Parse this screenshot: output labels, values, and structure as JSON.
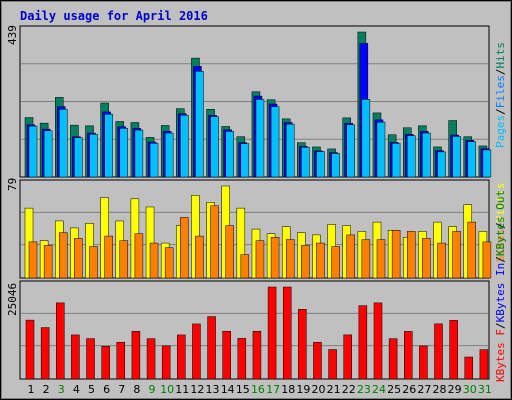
{
  "chart_data": [
    {
      "type": "bar",
      "title": "Daily usage for April 2016",
      "ylabel_max": "439",
      "legend": [
        "Pages",
        "/",
        "Files",
        "/",
        "Hits"
      ],
      "legend_colors": [
        "#00bfff",
        "#000000",
        "#0080ff",
        "#000000",
        "#00805c"
      ],
      "categories": [
        "1",
        "2",
        "3",
        "4",
        "5",
        "6",
        "7",
        "8",
        "9",
        "10",
        "11",
        "12",
        "13",
        "14",
        "15",
        "16",
        "17",
        "18",
        "19",
        "20",
        "21",
        "22",
        "23",
        "24",
        "25",
        "26",
        "27",
        "28",
        "29",
        "30",
        "31"
      ],
      "weekend_days": [
        "3",
        "9",
        "10",
        "16",
        "17",
        "23",
        "24",
        "30",
        "31"
      ],
      "series": [
        {
          "name": "Hits",
          "values": [
            180,
            163,
            241,
            157,
            155,
            224,
            168,
            165,
            120,
            156,
            207,
            360,
            205,
            153,
            122,
            258,
            234,
            176,
            104,
            91,
            85,
            179,
            439,
            194,
            128,
            149,
            155,
            91,
            171,
            122,
            94
          ]
        },
        {
          "name": "Files",
          "values": [
            158,
            145,
            213,
            122,
            133,
            197,
            152,
            147,
            106,
            138,
            192,
            335,
            187,
            143,
            104,
            245,
            221,
            165,
            93,
            79,
            74,
            163,
            405,
            173,
            105,
            129,
            138,
            80,
            127,
            111,
            86
          ]
        },
        {
          "name": "Pages",
          "values": [
            154,
            140,
            205,
            119,
            129,
            190,
            147,
            142,
            102,
            133,
            187,
            320,
            183,
            138,
            101,
            235,
            213,
            160,
            90,
            77,
            71,
            158,
            235,
            166,
            102,
            125,
            133,
            76,
            123,
            107,
            82
          ]
        }
      ]
    },
    {
      "type": "bar",
      "ylabel_max": "79",
      "legend": [
        "Sites",
        "/",
        "Visits"
      ],
      "legend_colors": [
        "#ff8000",
        "#000000",
        "#ffff00"
      ],
      "categories": [
        "1",
        "2",
        "3",
        "4",
        "5",
        "6",
        "7",
        "8",
        "9",
        "10",
        "11",
        "12",
        "13",
        "14",
        "15",
        "16",
        "17",
        "18",
        "19",
        "20",
        "21",
        "22",
        "23",
        "24",
        "25",
        "26",
        "27",
        "28",
        "29",
        "30",
        "31"
      ],
      "series": [
        {
          "name": "Visits",
          "values": [
            60,
            32,
            49,
            43,
            47,
            69,
            49,
            68,
            61,
            30,
            45,
            71,
            65,
            79,
            60,
            42,
            38,
            44,
            39,
            37,
            46,
            45,
            40,
            48,
            41,
            35,
            40,
            48,
            44,
            63,
            40
          ]
        },
        {
          "name": "Sites",
          "values": [
            31,
            28,
            39,
            34,
            27,
            36,
            32,
            38,
            30,
            26,
            52,
            36,
            62,
            45,
            20,
            32,
            35,
            33,
            28,
            30,
            27,
            37,
            33,
            33,
            41,
            40,
            34,
            30,
            40,
            48,
            31
          ]
        }
      ]
    },
    {
      "type": "bar",
      "ylabel_max": "25046",
      "legend": [
        "KBytes F",
        "/",
        "KBytes In",
        "/",
        "KBytes Out"
      ],
      "legend_colors": [
        "#ff0000",
        "#000000",
        "#0000ff",
        "#000000",
        "#008000"
      ],
      "categories": [
        "1",
        "2",
        "3",
        "4",
        "5",
        "6",
        "7",
        "8",
        "9",
        "10",
        "11",
        "12",
        "13",
        "14",
        "15",
        "16",
        "17",
        "18",
        "19",
        "20",
        "21",
        "22",
        "23",
        "24",
        "25",
        "26",
        "27",
        "28",
        "29",
        "30",
        "31"
      ],
      "series": [
        {
          "name": "KBytes F",
          "values": [
            16032,
            14006,
            20720,
            11998,
            10991,
            8912,
            10015,
            12997,
            10991,
            9020,
            12000,
            14994,
            16997,
            13008,
            11060,
            13008,
            25046,
            25046,
            18981,
            10001,
            8025,
            12015,
            19974,
            20720,
            10984,
            12954,
            9009,
            15010,
            15964,
            5993,
            7995
          ]
        }
      ]
    }
  ],
  "day_labels": [
    "1",
    "2",
    "3",
    "4",
    "5",
    "6",
    "7",
    "8",
    "9",
    "10",
    "11",
    "12",
    "13",
    "14",
    "15",
    "16",
    "17",
    "18",
    "19",
    "20",
    "21",
    "22",
    "23",
    "24",
    "25",
    "26",
    "27",
    "28",
    "29",
    "30",
    "31"
  ]
}
